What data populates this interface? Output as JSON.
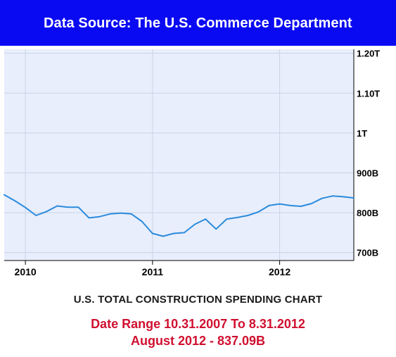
{
  "header": {
    "text": "Data Source: The U.S. Commerce Department",
    "background": "#0a0af2"
  },
  "chart_data": {
    "type": "line",
    "title": "U.S. TOTAL CONSTRUCTION SPENDING CHART",
    "subtitle_lines": [
      "Date Range 10.31.2007 To 8.31.2012",
      "August 2012 - 837.09B"
    ],
    "xlabel": "",
    "ylabel": "",
    "x_ticks": [
      "2010",
      "2011",
      "2012"
    ],
    "y_ticks": [
      {
        "value": 700,
        "label": "700B"
      },
      {
        "value": 800,
        "label": "800B"
      },
      {
        "value": 900,
        "label": "900B"
      },
      {
        "value": 1000,
        "label": "1T"
      },
      {
        "value": 1100,
        "label": "1.10T"
      },
      {
        "value": 1200,
        "label": "1.20T"
      }
    ],
    "ylim": [
      680,
      1210
    ],
    "xlim": [
      "2009-11",
      "2012-08"
    ],
    "y_axis_position": "right",
    "grid": true,
    "series": [
      {
        "color": "#2a8bdc",
        "points": [
          [
            "2009-11",
            845
          ],
          [
            "2009-12",
            830
          ],
          [
            "2010-01",
            813
          ],
          [
            "2010-02",
            793
          ],
          [
            "2010-03",
            803
          ],
          [
            "2010-04",
            817
          ],
          [
            "2010-05",
            814
          ],
          [
            "2010-06",
            814
          ],
          [
            "2010-07",
            787
          ],
          [
            "2010-08",
            790
          ],
          [
            "2010-09",
            797
          ],
          [
            "2010-10",
            799
          ],
          [
            "2010-11",
            797
          ],
          [
            "2010-12",
            778
          ],
          [
            "2011-01",
            748
          ],
          [
            "2011-02",
            741
          ],
          [
            "2011-03",
            748
          ],
          [
            "2011-04",
            750
          ],
          [
            "2011-05",
            771
          ],
          [
            "2011-06",
            784
          ],
          [
            "2011-07",
            759
          ],
          [
            "2011-08",
            784
          ],
          [
            "2011-09",
            788
          ],
          [
            "2011-10",
            793
          ],
          [
            "2011-11",
            802
          ],
          [
            "2011-12",
            818
          ],
          [
            "2012-01",
            822
          ],
          [
            "2012-02",
            818
          ],
          [
            "2012-03",
            816
          ],
          [
            "2012-04",
            823
          ],
          [
            "2012-05",
            836
          ],
          [
            "2012-06",
            842
          ],
          [
            "2012-07",
            840
          ],
          [
            "2012-08",
            837.09
          ]
        ]
      }
    ],
    "colors": {
      "plot_background": "#e8eefc",
      "grid": "#c9d4e4",
      "axis": "#000000",
      "subtitle": "#d01030"
    }
  }
}
